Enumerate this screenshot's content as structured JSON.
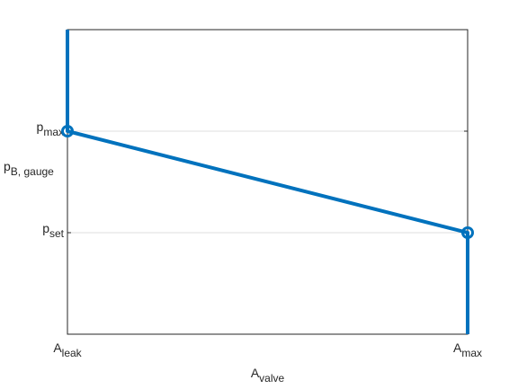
{
  "chart_data": {
    "type": "line",
    "x_label": {
      "main": "A",
      "sub": "valve"
    },
    "y_label": {
      "main": "p",
      "sub": "B, gauge"
    },
    "xlim": [
      0,
      1
    ],
    "ylim": [
      0,
      3
    ],
    "xticks": [
      {
        "value": 0,
        "label": {
          "main": "A",
          "sub": "leak"
        }
      },
      {
        "value": 1,
        "label": {
          "main": "A",
          "sub": "max"
        }
      }
    ],
    "yticks": [
      {
        "value": 1,
        "label": {
          "main": "p",
          "sub": "set"
        }
      },
      {
        "value": 2,
        "label": {
          "main": "p",
          "sub": "max"
        }
      }
    ],
    "grid": true,
    "series": [
      {
        "color": "#0072bd",
        "x": [
          0,
          0,
          1,
          1
        ],
        "values": [
          3,
          2,
          1,
          0
        ]
      },
      {
        "color": "#0072bd",
        "marker": "circle",
        "line": false,
        "x": [
          0,
          1
        ],
        "values": [
          2,
          1
        ]
      }
    ]
  }
}
